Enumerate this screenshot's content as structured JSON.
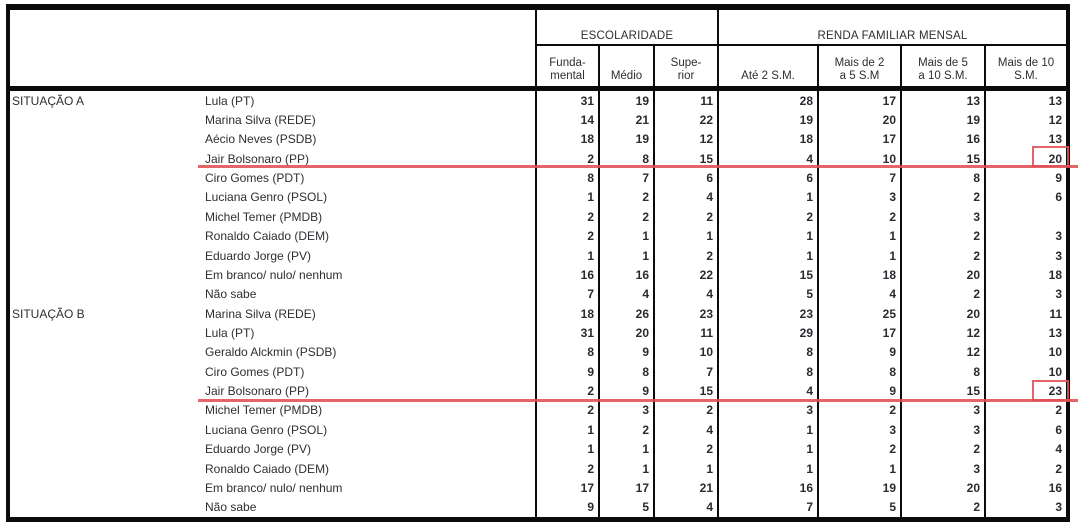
{
  "table": {
    "header": {
      "group1": "ESCOLARIDADE",
      "group2": "RENDA FAMILIAR MENSAL",
      "subcols": [
        {
          "lines": [
            "Funda-",
            "mental"
          ]
        },
        {
          "lines": [
            "Médio"
          ]
        },
        {
          "lines": [
            "Supe-",
            "rior"
          ]
        },
        {
          "lines": [
            "Até 2 S.M."
          ]
        },
        {
          "lines": [
            "Mais de 2",
            "a 5 S.M"
          ]
        },
        {
          "lines": [
            "Mais de 5",
            "a 10 S.M."
          ]
        },
        {
          "lines": [
            "Mais de 10",
            "S.M."
          ]
        }
      ]
    },
    "sections": [
      {
        "label": "SITUAÇÃO A",
        "rows": [
          {
            "name": "Lula (PT)",
            "values": [
              31,
              19,
              11,
              28,
              17,
              13,
              13
            ]
          },
          {
            "name": "Marina Silva (REDE)",
            "values": [
              14,
              21,
              22,
              19,
              20,
              19,
              12
            ]
          },
          {
            "name": "Aécio Neves (PSDB)",
            "values": [
              18,
              19,
              12,
              18,
              17,
              16,
              13
            ]
          },
          {
            "name": "Jair Bolsonaro (PP)",
            "values": [
              2,
              8,
              15,
              4,
              10,
              15,
              20
            ],
            "underlined": true,
            "boxed_last": true
          },
          {
            "name": "Ciro Gomes (PDT)",
            "values": [
              8,
              7,
              6,
              6,
              7,
              8,
              9
            ]
          },
          {
            "name": "Luciana Genro (PSOL)",
            "values": [
              1,
              2,
              4,
              1,
              3,
              2,
              6
            ]
          },
          {
            "name": "Michel Temer (PMDB)",
            "values": [
              2,
              2,
              2,
              2,
              2,
              3,
              ""
            ]
          },
          {
            "name": "Ronaldo Caiado (DEM)",
            "values": [
              2,
              1,
              1,
              1,
              1,
              2,
              3
            ]
          },
          {
            "name": "Eduardo Jorge (PV)",
            "values": [
              1,
              1,
              2,
              1,
              1,
              2,
              3
            ]
          },
          {
            "name": "Em branco/ nulo/ nenhum",
            "values": [
              16,
              16,
              22,
              15,
              18,
              20,
              18
            ]
          },
          {
            "name": "Não sabe",
            "values": [
              7,
              4,
              4,
              5,
              4,
              2,
              3
            ]
          }
        ]
      },
      {
        "label": "SITUAÇÃO B",
        "rows": [
          {
            "name": "Marina Silva (REDE)",
            "values": [
              18,
              26,
              23,
              23,
              25,
              20,
              11
            ]
          },
          {
            "name": "Lula (PT)",
            "values": [
              31,
              20,
              11,
              29,
              17,
              12,
              13
            ]
          },
          {
            "name": "Geraldo Alckmin (PSDB)",
            "values": [
              8,
              9,
              10,
              8,
              9,
              12,
              10
            ]
          },
          {
            "name": "Ciro Gomes (PDT)",
            "values": [
              9,
              8,
              7,
              8,
              8,
              8,
              10
            ]
          },
          {
            "name": "Jair Bolsonaro (PP)",
            "values": [
              2,
              9,
              15,
              4,
              9,
              15,
              23
            ],
            "underlined": true,
            "boxed_last": true
          },
          {
            "name": "Michel Temer (PMDB)",
            "values": [
              2,
              3,
              2,
              3,
              2,
              3,
              2
            ]
          },
          {
            "name": "Luciana Genro (PSOL)",
            "values": [
              1,
              2,
              4,
              1,
              3,
              3,
              6
            ]
          },
          {
            "name": "Eduardo Jorge (PV)",
            "values": [
              1,
              1,
              2,
              1,
              2,
              2,
              4
            ]
          },
          {
            "name": "Ronaldo Caiado (DEM)",
            "values": [
              2,
              1,
              1,
              1,
              1,
              3,
              2
            ]
          },
          {
            "name": "Em branco/ nulo/ nenhum",
            "values": [
              17,
              17,
              21,
              16,
              19,
              20,
              16
            ]
          },
          {
            "name": "Não sabe",
            "values": [
              9,
              5,
              4,
              7,
              5,
              2,
              3
            ]
          }
        ]
      }
    ]
  },
  "annotations": {
    "color": "#df5054",
    "underlined_rows": [
      "Jair Bolsonaro (PP)"
    ],
    "boxed_values": [
      20,
      23
    ]
  },
  "colors": {
    "border": "#0b0b0b",
    "text": "#2e2e33",
    "background": "#ffffff"
  }
}
